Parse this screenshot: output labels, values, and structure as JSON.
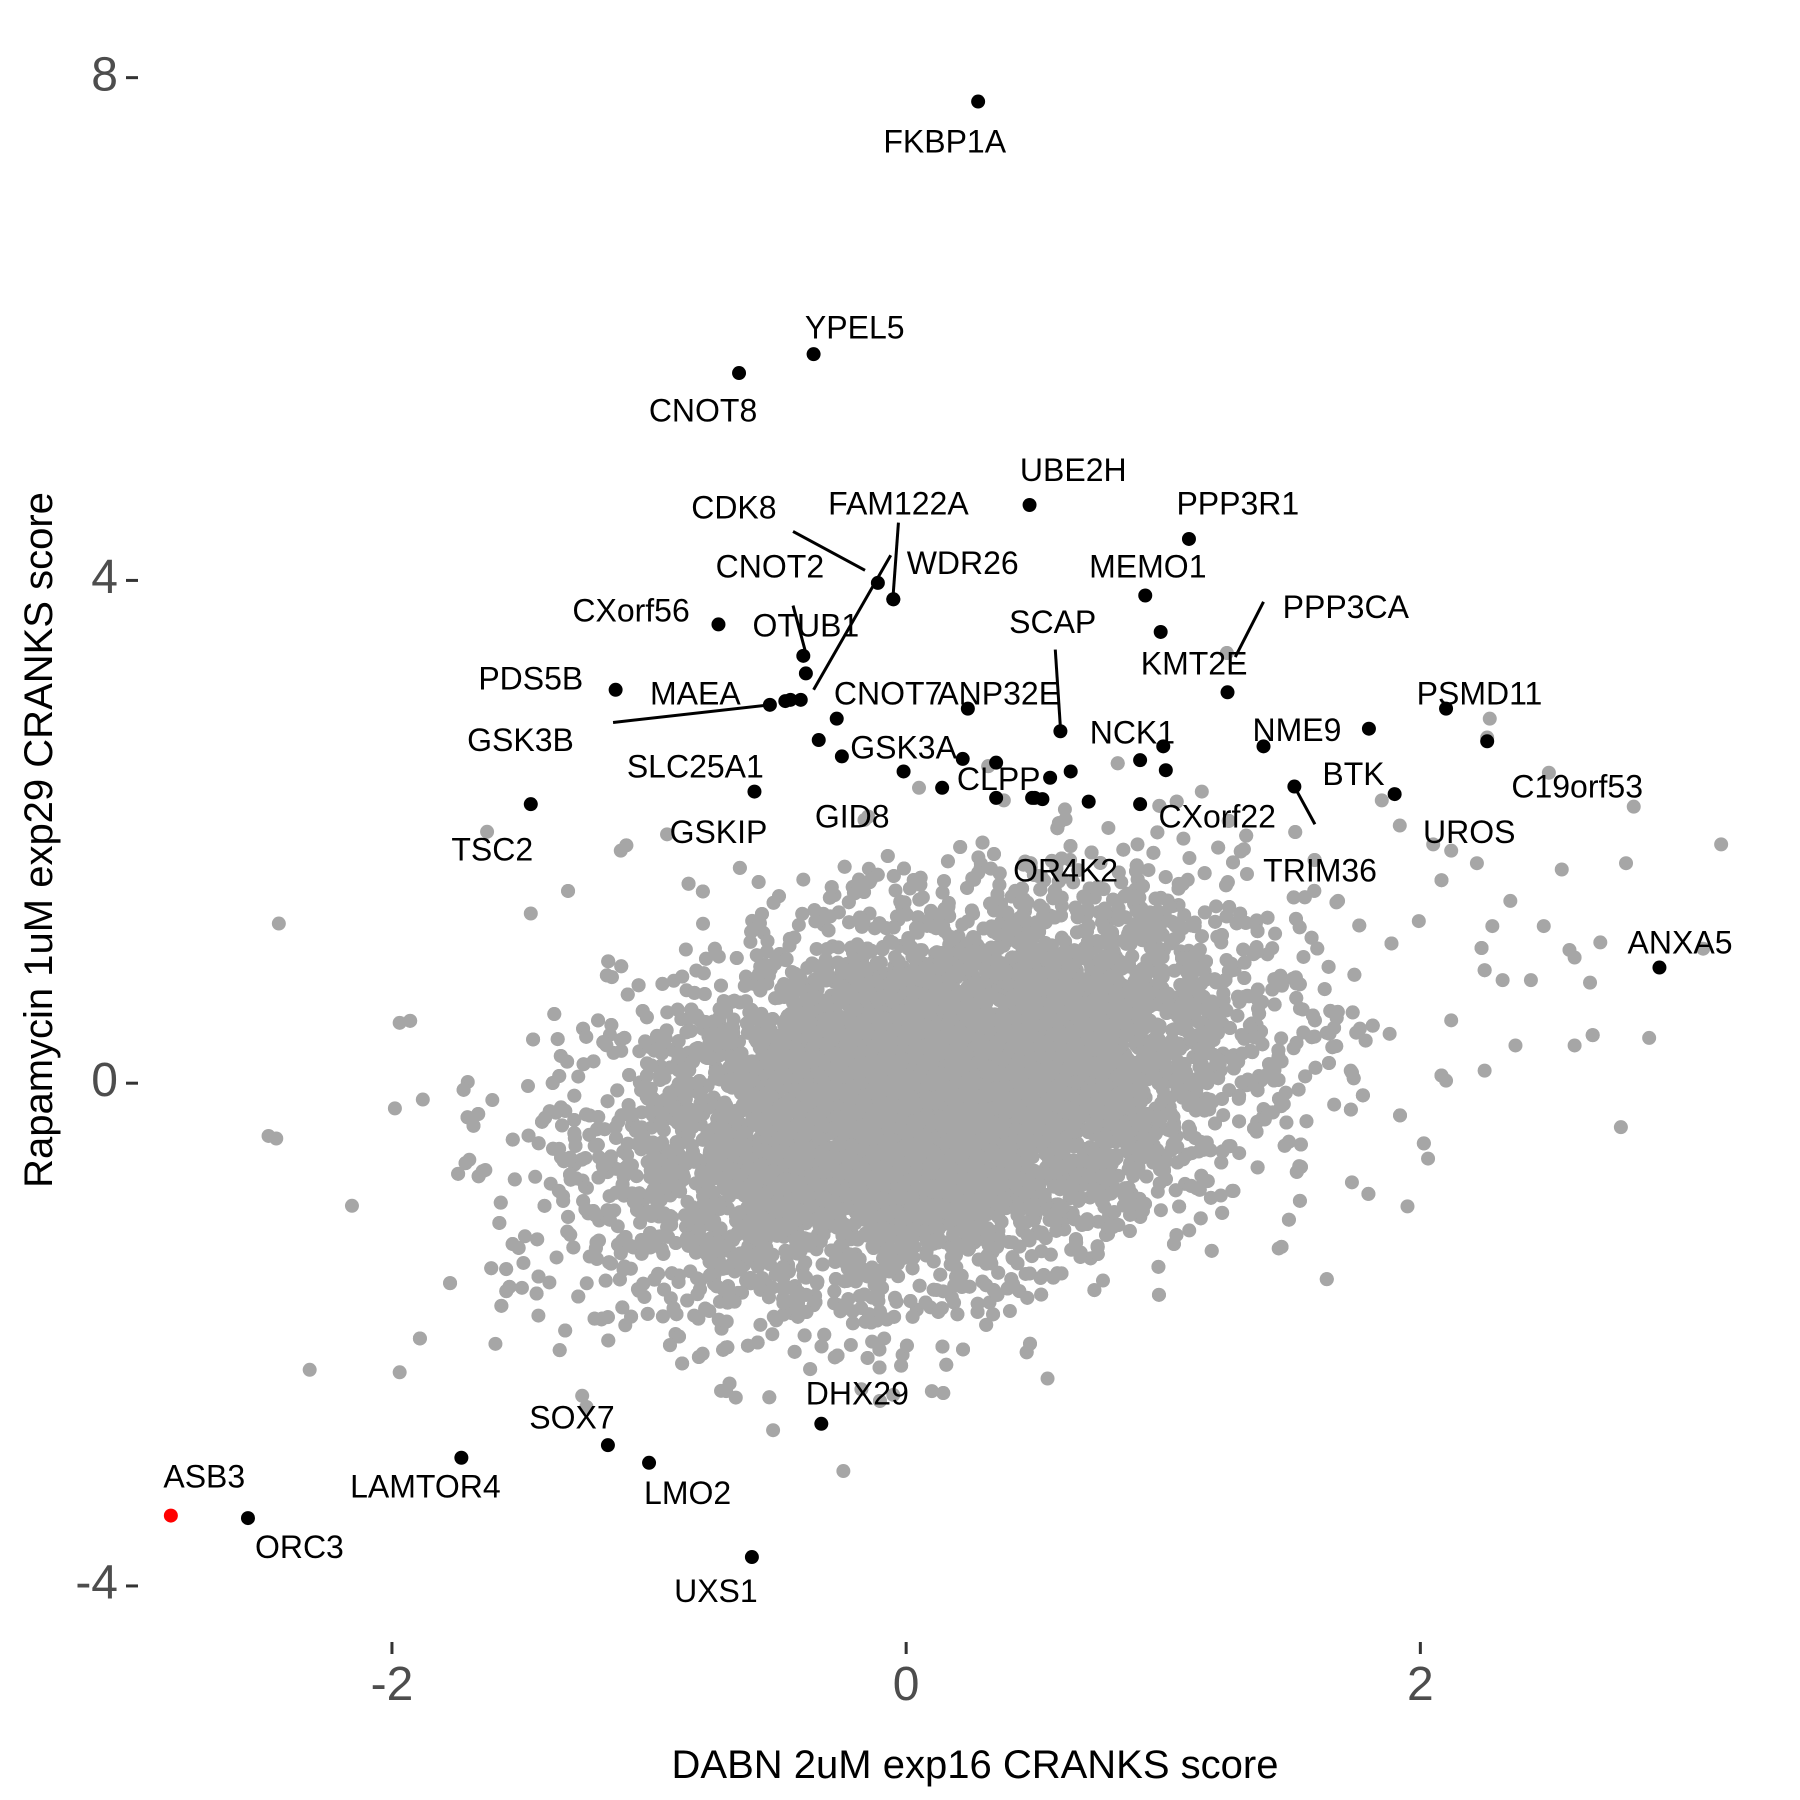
{
  "chart_data": {
    "type": "scatter",
    "title": "",
    "xlabel": "DABN 2uM exp16 CRANKS score",
    "ylabel": "Rapamycin 1uM exp29 CRANKS score",
    "xlim": [
      -2.98,
      3.36
    ],
    "ylim": [
      -4.43,
      8.22
    ],
    "x_ticks": [
      -2,
      0,
      2
    ],
    "x_tick_labels": [
      "-2",
      "0",
      "2"
    ],
    "y_ticks": [
      -4,
      0,
      4,
      8
    ],
    "y_tick_labels": [
      "-4",
      "0",
      "4",
      "8"
    ],
    "grid": false,
    "legend": "none",
    "colors": {
      "background": "#ffffff",
      "other_genes": "#a6a6a6",
      "highlighted": "#000000",
      "special": "#ff0000"
    },
    "background_cloud": {
      "series_name": "",
      "description_color": "#a6a6a6",
      "center": [
        0.1,
        -0.1
      ],
      "sd_x": 0.6,
      "sd_y": 0.75,
      "count": 12000
    },
    "other_points": [
      [
        -2.44,
        1.27
      ],
      [
        -2.32,
        -2.28
      ],
      [
        -2.48,
        -0.42
      ],
      [
        -2.45,
        -0.44
      ],
      [
        -1.97,
        0.48
      ],
      [
        -1.97,
        -2.3
      ],
      [
        -1.63,
        2.0
      ],
      [
        -1.88,
        -0.13
      ],
      [
        -1.46,
        1.35
      ],
      [
        -1.11,
        1.85
      ],
      [
        -0.93,
        1.98
      ],
      [
        -0.4,
        1.62
      ],
      [
        0.05,
        2.35
      ],
      [
        0.38,
        2.25
      ],
      [
        0.62,
        2.1
      ],
      [
        0.9,
        1.9
      ],
      [
        1.15,
        2.32
      ],
      [
        1.68,
        1.45
      ],
      [
        1.85,
        2.25
      ],
      [
        1.92,
        2.05
      ],
      [
        2.05,
        1.9
      ],
      [
        2.12,
        1.85
      ],
      [
        2.22,
        1.75
      ],
      [
        2.26,
        2.75
      ],
      [
        2.27,
        2.9
      ],
      [
        2.5,
        2.47
      ],
      [
        2.83,
        2.2
      ],
      [
        3.17,
        1.9
      ],
      [
        2.8,
        1.75
      ],
      [
        2.55,
        1.7
      ],
      [
        2.35,
        1.45
      ],
      [
        2.48,
        1.25
      ],
      [
        2.58,
        1.06
      ],
      [
        2.6,
        1.0
      ],
      [
        2.7,
        1.12
      ],
      [
        3.1,
        1.07
      ],
      [
        2.43,
        0.82
      ],
      [
        2.28,
        1.25
      ],
      [
        2.32,
        0.82
      ],
      [
        2.66,
        0.8
      ],
      [
        2.89,
        0.36
      ],
      [
        2.6,
        0.3
      ],
      [
        2.37,
        0.3
      ],
      [
        2.12,
        0.5
      ],
      [
        2.1,
        0.02
      ],
      [
        2.25,
        0.1
      ],
      [
        2.78,
        -0.35
      ],
      [
        2.03,
        -0.6
      ],
      [
        1.95,
        -0.98
      ],
      [
        -0.05,
        -2.48
      ],
      [
        0.1,
        -2.45
      ],
      [
        0.55,
        -2.35
      ],
      [
        -0.7,
        -2.45
      ]
    ],
    "labeled_points": [
      {
        "label": "FKBP1A",
        "x": 0.28,
        "y": 7.81
      },
      {
        "label": "YPEL5",
        "x": -0.36,
        "y": 5.8
      },
      {
        "label": "CNOT8",
        "x": -0.65,
        "y": 5.65
      },
      {
        "label": "UBE2H",
        "x": 0.48,
        "y": 4.6
      },
      {
        "label": "PPP3R1",
        "x": 1.1,
        "y": 4.33
      },
      {
        "label": "CDK8",
        "x": -0.11,
        "y": 3.98
      },
      {
        "label": "FAM122A",
        "x": -0.05,
        "y": 3.85
      },
      {
        "label": "WDR26",
        "x": -0.05,
        "y": 3.85
      },
      {
        "label": "MEMO1",
        "x": 0.93,
        "y": 3.88
      },
      {
        "label": "CXorf56",
        "x": -0.73,
        "y": 3.65
      },
      {
        "label": "CNOT2",
        "x": -0.4,
        "y": 3.4
      },
      {
        "label": "OTUB1",
        "x": -0.39,
        "y": 3.26
      },
      {
        "label": "KMT2E",
        "x": 0.99,
        "y": 3.59
      },
      {
        "label": "PPP3CA",
        "x": 1.25,
        "y": 3.11
      },
      {
        "label": "PDS5B",
        "x": -1.13,
        "y": 3.13
      },
      {
        "label": "MAEA",
        "x": -0.53,
        "y": 3.01
      },
      {
        "label": "CNOT7",
        "x": -0.45,
        "y": 3.05
      },
      {
        "label": "GSK3B",
        "x": -0.41,
        "y": 3.05
      },
      {
        "label": "ANP32E",
        "x": 0.24,
        "y": 2.98
      },
      {
        "label": "GSK3A",
        "x": -0.27,
        "y": 2.9
      },
      {
        "label": "SCAP",
        "x": 0.6,
        "y": 2.8
      },
      {
        "label": "PSMD11",
        "x": 2.1,
        "y": 2.98
      },
      {
        "label": "NCK1",
        "x": 1.0,
        "y": 2.68
      },
      {
        "label": "NME9",
        "x": 1.39,
        "y": 2.68
      },
      {
        "label": "SLC25A1",
        "x": -0.34,
        "y": 2.73
      },
      {
        "label": "CLPP",
        "x": 0.35,
        "y": 2.55
      },
      {
        "label": "BTK",
        "x": 1.8,
        "y": 2.82
      },
      {
        "label": "C19orf53",
        "x": 2.26,
        "y": 2.72
      },
      {
        "label": "GSKIP",
        "x": -0.59,
        "y": 2.32
      },
      {
        "label": "GID8",
        "x": 0.14,
        "y": 2.35
      },
      {
        "label": "OR4K2",
        "x": 0.49,
        "y": 2.27
      },
      {
        "label": "CXorf22",
        "x": 0.91,
        "y": 2.22
      },
      {
        "label": "TRIM36",
        "x": 1.51,
        "y": 2.36
      },
      {
        "label": "UROS",
        "x": 1.9,
        "y": 2.3
      },
      {
        "label": "TSC2",
        "x": -1.46,
        "y": 2.22
      },
      {
        "label": "ANXA5",
        "x": 2.93,
        "y": 0.92
      },
      {
        "label": "DHX29",
        "x": -0.33,
        "y": -2.71
      },
      {
        "label": "SOX7",
        "x": -1.16,
        "y": -2.88
      },
      {
        "label": "LMO2",
        "x": -1.0,
        "y": -3.02
      },
      {
        "label": "LAMTOR4",
        "x": -1.73,
        "y": -2.98
      },
      {
        "label": "ASB3",
        "x": -2.86,
        "y": -3.44,
        "special": true
      },
      {
        "label": "ORC3",
        "x": -2.56,
        "y": -3.46
      },
      {
        "label": "UXS1",
        "x": -0.6,
        "y": -3.77
      }
    ],
    "extra_highlighted_points": [
      [
        -0.47,
        3.04
      ],
      [
        -0.25,
        2.6
      ],
      [
        -0.01,
        2.48
      ],
      [
        0.22,
        2.58
      ],
      [
        0.35,
        2.27
      ],
      [
        0.5,
        2.27
      ],
      [
        0.53,
        2.26
      ],
      [
        0.56,
        2.43
      ],
      [
        0.64,
        2.48
      ],
      [
        0.71,
        2.24
      ],
      [
        0.91,
        2.57
      ],
      [
        1.01,
        2.49
      ]
    ],
    "label_lines": [
      {
        "from": [
          -0.44,
          4.39
        ],
        "to": [
          -0.16,
          4.08
        ]
      },
      {
        "from": [
          -0.03,
          4.46
        ],
        "to": [
          -0.05,
          3.9
        ]
      },
      {
        "from": [
          -0.44,
          3.8
        ],
        "to": [
          -0.39,
          3.42
        ]
      },
      {
        "from": [
          -0.06,
          4.2
        ],
        "to": [
          -0.36,
          3.13
        ]
      },
      {
        "from": [
          -1.14,
          2.87
        ],
        "to": [
          -0.53,
          3.01
        ]
      },
      {
        "from": [
          0.58,
          3.45
        ],
        "to": [
          0.6,
          2.83
        ]
      },
      {
        "from": [
          1.39,
          3.83
        ],
        "to": [
          1.28,
          3.39
        ]
      },
      {
        "from": [
          1.51,
          2.36
        ],
        "to": [
          1.59,
          2.06
        ]
      }
    ],
    "annotations": [
      {
        "text": "FKBP1A",
        "x": 0.15,
        "y": 7.47
      },
      {
        "text": "YPEL5",
        "x": -0.2,
        "y": 5.99
      },
      {
        "text": "CNOT8",
        "x": -0.79,
        "y": 5.33
      },
      {
        "text": "UBE2H",
        "x": 0.65,
        "y": 4.86
      },
      {
        "text": "PPP3R1",
        "x": 1.29,
        "y": 4.59
      },
      {
        "text": "CDK8",
        "x": -0.67,
        "y": 4.56
      },
      {
        "text": "FAM122A",
        "x": -0.03,
        "y": 4.59
      },
      {
        "text": "CNOT2",
        "x": -0.53,
        "y": 4.09
      },
      {
        "text": "WDR26",
        "x": 0.22,
        "y": 4.12
      },
      {
        "text": "MEMO1",
        "x": 0.94,
        "y": 4.09
      },
      {
        "text": "CXorf56",
        "x": -1.07,
        "y": 3.74
      },
      {
        "text": "OTUB1",
        "x": -0.39,
        "y": 3.62
      },
      {
        "text": "SCAP",
        "x": 0.57,
        "y": 3.65
      },
      {
        "text": "PPP3CA",
        "x": 1.71,
        "y": 3.77
      },
      {
        "text": "KMT2E",
        "x": 1.12,
        "y": 3.32
      },
      {
        "text": "PDS5B",
        "x": -1.46,
        "y": 3.2
      },
      {
        "text": "MAEA",
        "x": -0.82,
        "y": 3.08
      },
      {
        "text": "CNOT7",
        "x": -0.07,
        "y": 3.08
      },
      {
        "text": "ANP32E",
        "x": 0.36,
        "y": 3.08
      },
      {
        "text": "PSMD11",
        "x": 2.23,
        "y": 3.08
      },
      {
        "text": "GSK3B",
        "x": -1.5,
        "y": 2.71
      },
      {
        "text": "NCK1",
        "x": 0.88,
        "y": 2.77
      },
      {
        "text": "NME9",
        "x": 1.52,
        "y": 2.79
      },
      {
        "text": "GSK3A",
        "x": -0.01,
        "y": 2.65
      },
      {
        "text": "SLC25A1",
        "x": -0.82,
        "y": 2.5
      },
      {
        "text": "BTK",
        "x": 1.74,
        "y": 2.44
      },
      {
        "text": "C19orf53",
        "x": 2.61,
        "y": 2.34
      },
      {
        "text": "CLPP",
        "x": 0.36,
        "y": 2.4
      },
      {
        "text": "GID8",
        "x": -0.21,
        "y": 2.1
      },
      {
        "text": "CXorf22",
        "x": 1.21,
        "y": 2.1
      },
      {
        "text": "TSC2",
        "x": -1.61,
        "y": 1.84
      },
      {
        "text": "GSKIP",
        "x": -0.73,
        "y": 1.98
      },
      {
        "text": "UROS",
        "x": 2.19,
        "y": 1.98
      },
      {
        "text": "OR4K2",
        "x": 0.62,
        "y": 1.67
      },
      {
        "text": "TRIM36",
        "x": 1.61,
        "y": 1.67
      },
      {
        "text": "ANXA5",
        "x": 3.01,
        "y": 1.1
      },
      {
        "text": "DHX29",
        "x": -0.19,
        "y": -2.49
      },
      {
        "text": "SOX7",
        "x": -1.3,
        "y": -2.68
      },
      {
        "text": "ASB3",
        "x": -2.73,
        "y": -3.15
      },
      {
        "text": "LAMTOR4",
        "x": -1.87,
        "y": -3.23
      },
      {
        "text": "LMO2",
        "x": -0.85,
        "y": -3.28
      },
      {
        "text": "ORC3",
        "x": -2.36,
        "y": -3.71
      },
      {
        "text": "UXS1",
        "x": -0.74,
        "y": -4.06
      }
    ]
  }
}
